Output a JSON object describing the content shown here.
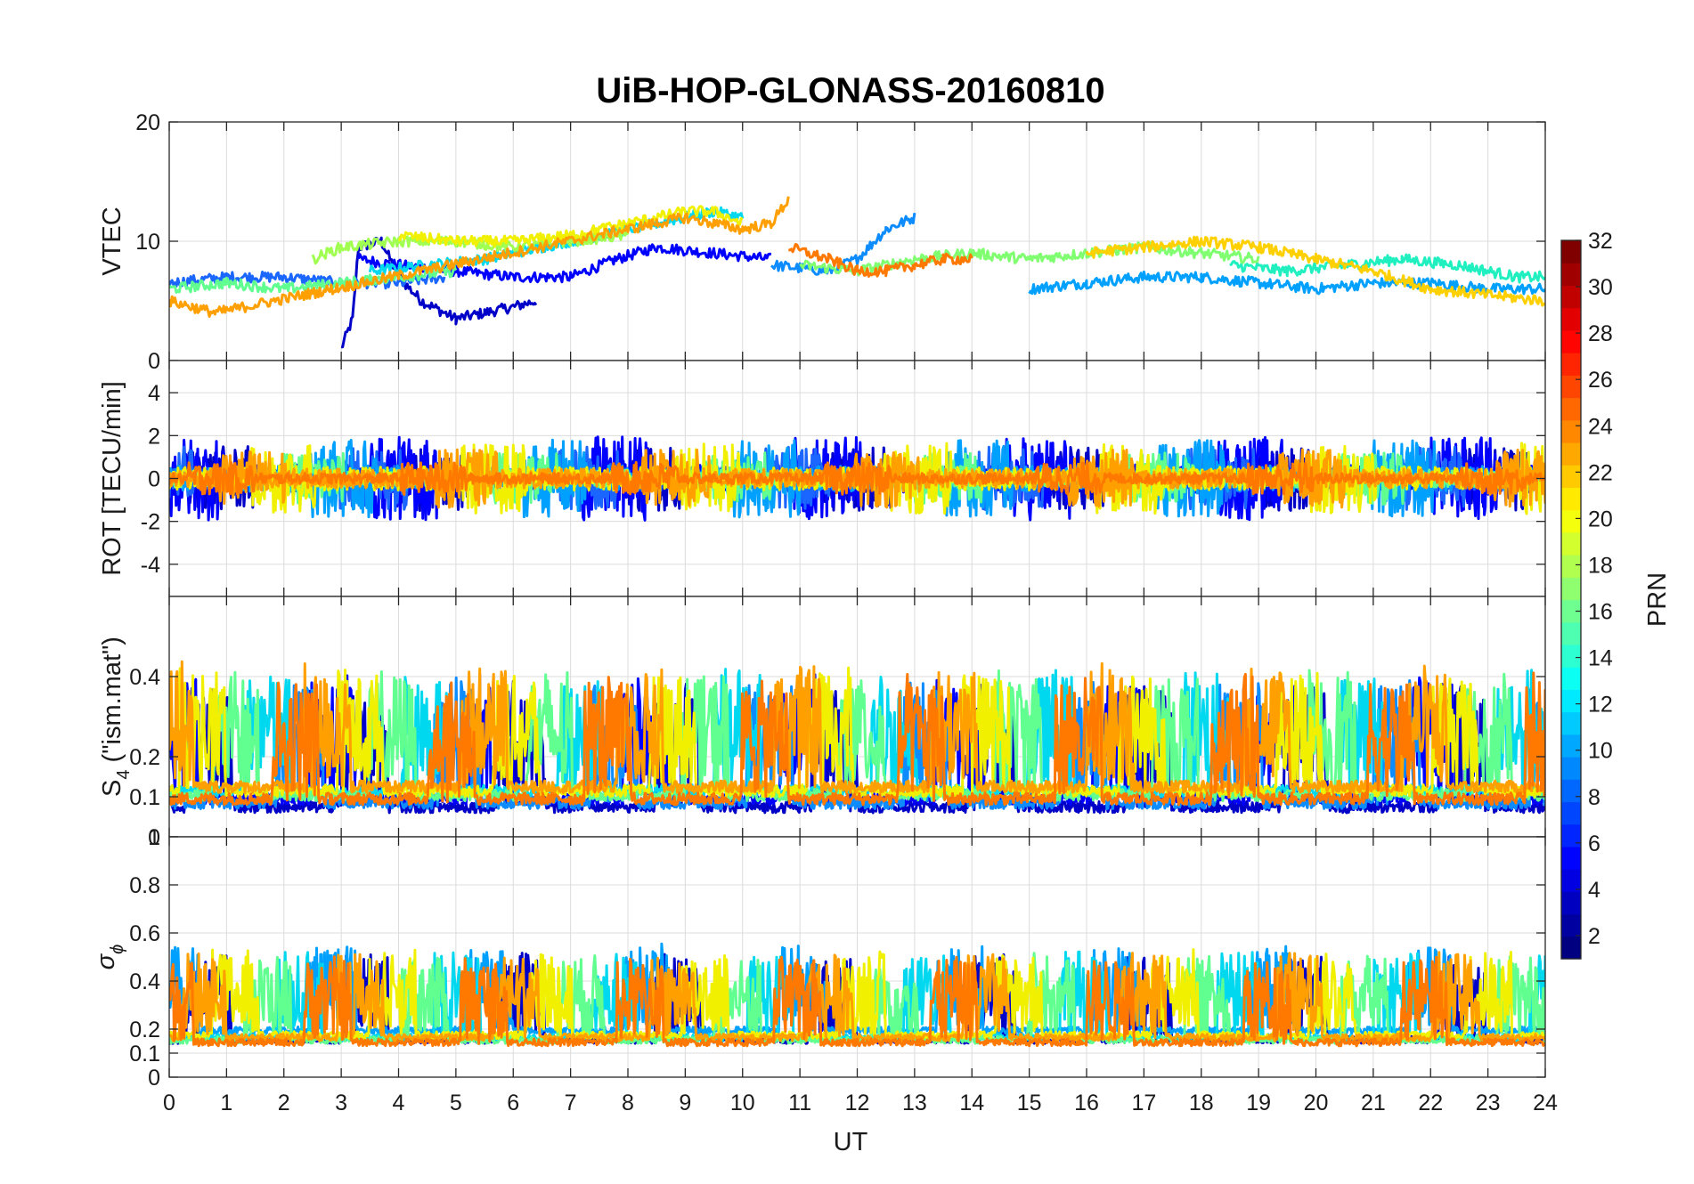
{
  "chart_data": {
    "type": "line",
    "title": "UiB-HOP-GLONASS-20160810",
    "xlabel": "UT",
    "x_range": [
      0,
      24
    ],
    "x_ticks": [
      0,
      1,
      2,
      3,
      4,
      5,
      6,
      7,
      8,
      9,
      10,
      11,
      12,
      13,
      14,
      15,
      16,
      17,
      18,
      19,
      20,
      21,
      22,
      23,
      24
    ],
    "grid": true,
    "colorbar": {
      "label": "PRN",
      "range": [
        1,
        32
      ],
      "ticks": [
        2,
        4,
        6,
        8,
        10,
        12,
        14,
        16,
        18,
        20,
        22,
        24,
        26,
        28,
        30,
        32
      ],
      "colormap": "jet",
      "placement": "right"
    },
    "panels": [
      {
        "ylabel": "VTEC",
        "ylim": [
          0,
          20
        ],
        "yticks": [
          0,
          10,
          20
        ],
        "series": [
          {
            "prn": 3,
            "color": "#0000c8",
            "points": [
              [
                3.0,
                1.0
              ],
              [
                3.2,
                3.5
              ],
              [
                3.3,
                9.5
              ],
              [
                3.7,
                10.0
              ],
              [
                4.0,
                7.0
              ],
              [
                4.4,
                5.0
              ],
              [
                5.0,
                3.5
              ],
              [
                5.5,
                4.0
              ],
              [
                6.0,
                4.5
              ],
              [
                6.4,
                5.0
              ]
            ]
          },
          {
            "prn": 5,
            "color": "#0000ff",
            "points": [
              [
                3.3,
                8.5
              ],
              [
                4.0,
                8.0
              ],
              [
                5.0,
                7.5
              ],
              [
                6.0,
                7.0
              ],
              [
                7.0,
                7.0
              ],
              [
                7.8,
                8.5
              ],
              [
                8.5,
                9.5
              ],
              [
                9.5,
                9.0
              ],
              [
                10.5,
                8.5
              ]
            ]
          },
          {
            "prn": 7,
            "color": "#1a66ff",
            "points": [
              [
                0.0,
                6.5
              ],
              [
                1.0,
                7.0
              ],
              [
                2.0,
                7.0
              ],
              [
                3.0,
                6.5
              ],
              [
                4.0,
                6.5
              ],
              [
                4.8,
                7.0
              ]
            ]
          },
          {
            "prn": 9,
            "color": "#0d8cff",
            "points": [
              [
                10.5,
                8.0
              ],
              [
                11.5,
                7.5
              ],
              [
                12.0,
                8.5
              ],
              [
                12.5,
                11.0
              ],
              [
                13.0,
                12.0
              ]
            ]
          },
          {
            "prn": 10,
            "color": "#00a0ff",
            "points": [
              [
                15.0,
                6.0
              ],
              [
                16.0,
                6.5
              ],
              [
                17.0,
                7.0
              ],
              [
                18.0,
                7.0
              ],
              [
                19.0,
                6.5
              ],
              [
                20.0,
                6.0
              ],
              [
                21.0,
                6.5
              ],
              [
                22.0,
                6.5
              ],
              [
                23.0,
                6.0
              ],
              [
                24.0,
                6.0
              ]
            ]
          },
          {
            "prn": 12,
            "color": "#00d8f0",
            "points": [
              [
                3.5,
                7.5
              ],
              [
                4.5,
                8.0
              ],
              [
                5.5,
                8.5
              ],
              [
                6.5,
                9.5
              ],
              [
                7.5,
                10.5
              ],
              [
                8.5,
                11.5
              ],
              [
                9.5,
                12.5
              ],
              [
                10.0,
                12.0
              ]
            ]
          },
          {
            "prn": 14,
            "color": "#20f0c0",
            "points": [
              [
                18.5,
                8.0
              ],
              [
                19.5,
                7.5
              ],
              [
                20.5,
                8.0
              ],
              [
                21.5,
                8.5
              ],
              [
                22.5,
                8.0
              ],
              [
                23.5,
                7.0
              ],
              [
                24.0,
                7.0
              ]
            ]
          },
          {
            "prn": 16,
            "color": "#60ff90",
            "points": [
              [
                0.0,
                6.0
              ],
              [
                1.0,
                6.5
              ],
              [
                2.0,
                6.0
              ],
              [
                3.0,
                6.5
              ],
              [
                4.0,
                7.0
              ],
              [
                5.0,
                7.5
              ]
            ]
          },
          {
            "prn": 17,
            "color": "#80ff70",
            "points": [
              [
                11.0,
                8.0
              ],
              [
                12.0,
                7.5
              ],
              [
                13.0,
                8.5
              ],
              [
                14.0,
                9.0
              ],
              [
                15.0,
                8.5
              ],
              [
                16.0,
                9.0
              ],
              [
                17.0,
                9.5
              ],
              [
                18.0,
                9.0
              ],
              [
                19.0,
                8.5
              ]
            ]
          },
          {
            "prn": 18,
            "color": "#a0ff50",
            "points": [
              [
                2.5,
                8.5
              ],
              [
                3.0,
                9.5
              ],
              [
                4.0,
                10.0
              ],
              [
                5.0,
                10.0
              ],
              [
                6.0,
                9.5
              ],
              [
                7.0,
                10.0
              ],
              [
                8.0,
                10.5
              ]
            ]
          },
          {
            "prn": 20,
            "color": "#f0f000",
            "points": [
              [
                4.0,
                10.5
              ],
              [
                5.0,
                10.0
              ],
              [
                6.0,
                10.0
              ],
              [
                7.0,
                10.5
              ],
              [
                8.0,
                11.5
              ],
              [
                9.0,
                12.5
              ],
              [
                9.5,
                12.5
              ],
              [
                10.0,
                11.5
              ]
            ]
          },
          {
            "prn": 21,
            "color": "#ffd000",
            "points": [
              [
                16.0,
                9.0
              ],
              [
                17.0,
                9.5
              ],
              [
                18.0,
                10.0
              ],
              [
                19.0,
                9.5
              ],
              [
                20.0,
                8.5
              ],
              [
                21.0,
                7.5
              ],
              [
                22.0,
                6.0
              ],
              [
                23.0,
                5.5
              ],
              [
                24.0,
                5.0
              ]
            ]
          },
          {
            "prn": 23,
            "color": "#ffa000",
            "points": [
              [
                0.0,
                5.0
              ],
              [
                0.4,
                4.5
              ],
              [
                0.8,
                4.0
              ],
              [
                8.5,
                11.5
              ],
              [
                9.0,
                12.0
              ],
              [
                9.5,
                11.5
              ],
              [
                10.0,
                11.0
              ],
              [
                10.5,
                11.5
              ],
              [
                10.8,
                13.5
              ]
            ]
          },
          {
            "prn": 24,
            "color": "#ff7800",
            "points": [
              [
                10.8,
                9.5
              ],
              [
                11.5,
                8.5
              ],
              [
                12.0,
                7.5
              ],
              [
                12.5,
                7.5
              ],
              [
                13.0,
                8.0
              ],
              [
                13.5,
                8.5
              ],
              [
                14.0,
                8.5
              ]
            ]
          }
        ]
      },
      {
        "ylabel": "ROT [TECU/min]",
        "ylim": [
          -5.5,
          5.5
        ],
        "yticks": [
          -4,
          -2,
          0,
          2,
          4
        ],
        "series": [
          {
            "prn": 3,
            "color": "#0000c8",
            "amplitude": 1.0
          },
          {
            "prn": 5,
            "color": "#0000ff",
            "amplitude": 1.3
          },
          {
            "prn": 7,
            "color": "#1a66ff",
            "amplitude": 1.0
          },
          {
            "prn": 10,
            "color": "#00a0ff",
            "amplitude": 1.2
          },
          {
            "prn": 16,
            "color": "#60ff90",
            "amplitude": 0.8
          },
          {
            "prn": 20,
            "color": "#f0f000",
            "amplitude": 1.1
          },
          {
            "prn": 23,
            "color": "#ffa000",
            "amplitude": 0.9
          },
          {
            "prn": 24,
            "color": "#ff7800",
            "amplitude": 0.5
          }
        ]
      },
      {
        "ylabel_main": "S",
        "ylabel_sub": "4",
        "ylabel_rest": " (\"ism.mat\")",
        "ylim": [
          0,
          0.6
        ],
        "yticks": [
          0,
          0.1,
          0.2,
          0.4
        ],
        "series": [
          {
            "prn": 3,
            "color": "#0000c8",
            "base": 0.06
          },
          {
            "prn": 5,
            "color": "#0000ff",
            "base": 0.08
          },
          {
            "prn": 9,
            "color": "#0d8cff",
            "base": 0.07
          },
          {
            "prn": 12,
            "color": "#00d8f0",
            "base": 0.1
          },
          {
            "prn": 16,
            "color": "#60ff90",
            "base": 0.09
          },
          {
            "prn": 20,
            "color": "#f0f000",
            "base": 0.1
          },
          {
            "prn": 23,
            "color": "#ffa000",
            "base": 0.11
          },
          {
            "prn": 24,
            "color": "#ff7800",
            "base": 0.08
          }
        ]
      },
      {
        "ylabel_main": "σ",
        "ylabel_sub": "ϕ",
        "ylim": [
          0,
          1
        ],
        "yticks": [
          0,
          0.1,
          0.2,
          0.4,
          0.6,
          0.8,
          1
        ],
        "series": [
          {
            "prn": 3,
            "color": "#0000c8",
            "base": 0.14
          },
          {
            "prn": 10,
            "color": "#00a0ff",
            "base": 0.18
          },
          {
            "prn": 12,
            "color": "#00d8f0",
            "base": 0.15
          },
          {
            "prn": 16,
            "color": "#60ff90",
            "base": 0.14
          },
          {
            "prn": 20,
            "color": "#f0f000",
            "base": 0.16
          },
          {
            "prn": 23,
            "color": "#ffa000",
            "base": 0.15
          },
          {
            "prn": 24,
            "color": "#ff7800",
            "base": 0.13
          }
        ]
      }
    ]
  }
}
